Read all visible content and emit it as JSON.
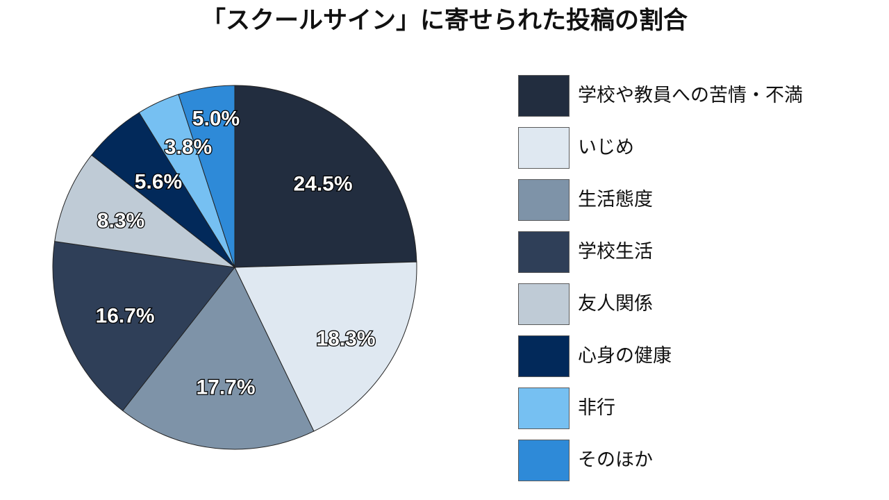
{
  "chart_data": {
    "type": "pie",
    "title": "「スクールサイン」に寄せられた投稿の割合",
    "legend_position": "right",
    "slices": [
      {
        "name": "学校や教員への苦情・不満",
        "value": 24.5,
        "label": "24.5%",
        "color": "#222d3f"
      },
      {
        "name": "いじめ",
        "value": 18.3,
        "label": "18.3%",
        "color": "#dfe8f1"
      },
      {
        "name": "生活態度",
        "value": 17.7,
        "label": "17.7%",
        "color": "#7e93a8"
      },
      {
        "name": "学校生活",
        "value": 16.7,
        "label": "16.7%",
        "color": "#2f3f58"
      },
      {
        "name": "友人関係",
        "value": 8.3,
        "label": "8.3%",
        "color": "#bfcbd6"
      },
      {
        "name": "心身の健康",
        "value": 5.6,
        "label": "5.6%",
        "color": "#02295a"
      },
      {
        "name": "非行",
        "value": 3.8,
        "label": "3.8%",
        "color": "#76c0f2"
      },
      {
        "name": "そのほか",
        "value": 5.0,
        "label": "5.0%",
        "color": "#2e8ad8"
      }
    ]
  }
}
